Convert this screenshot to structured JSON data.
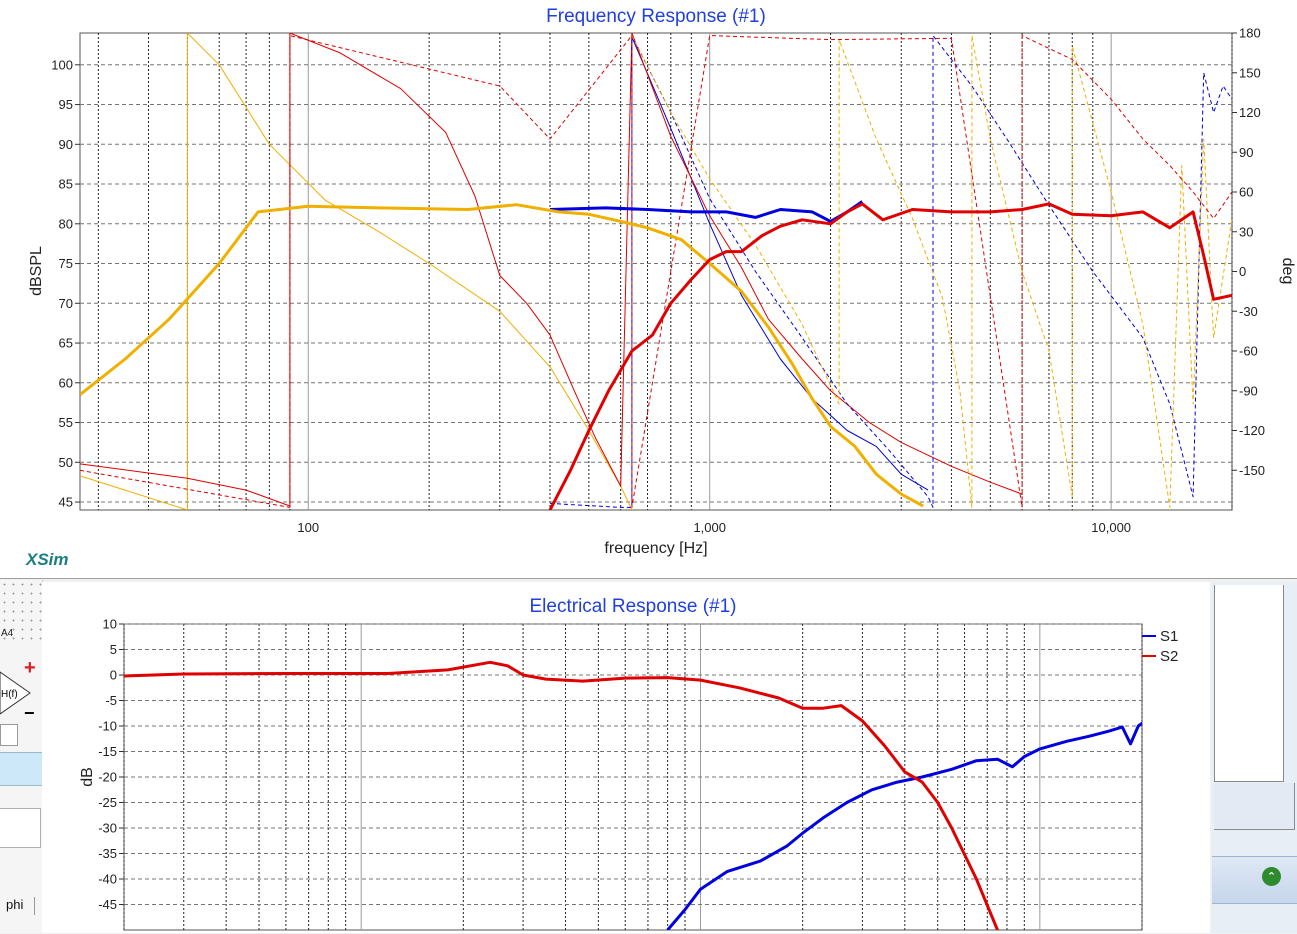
{
  "brand": "XSim",
  "left_strip": {
    "label_a4": "A4",
    "hf_label": "H(f)",
    "plus": "+",
    "minus": "−",
    "phi_label": "phi"
  },
  "collapse_icon": "double-chevron-up-icon",
  "chart_data": [
    {
      "type": "line",
      "title": "Frequency Response (#1)",
      "xlabel": "frequency [Hz]",
      "ylabel": "dBSPL",
      "ylabel_right": "deg",
      "xscale": "log",
      "xlim": [
        27,
        20000
      ],
      "ylim": [
        44,
        104
      ],
      "ylim_right": [
        -180,
        180
      ],
      "grid": true,
      "xticks": [
        100,
        1000,
        10000
      ],
      "xticklabels": [
        "100",
        "1,000",
        "10,000"
      ],
      "yticks": [
        45,
        50,
        55,
        60,
        65,
        70,
        75,
        80,
        85,
        90,
        95,
        100
      ],
      "yticks_right": [
        -150,
        -120,
        -90,
        -60,
        -30,
        0,
        30,
        60,
        90,
        120,
        150,
        180
      ],
      "series": [
        {
          "color": "#0000e0",
          "axis": "left",
          "style": "thick",
          "points": [
            [
              400,
              81.8
            ],
            [
              550,
              82.0
            ],
            [
              700,
              81.8
            ],
            [
              900,
              81.5
            ],
            [
              1100,
              81.5
            ],
            [
              1300,
              80.8
            ],
            [
              1500,
              81.8
            ],
            [
              1800,
              81.5
            ],
            [
              2000,
              80.3
            ],
            [
              2200,
              81.5
            ],
            [
              2400,
              82.8
            ]
          ]
        },
        {
          "color": "#f0b000",
          "axis": "left",
          "style": "thick",
          "points": [
            [
              27,
              58.5
            ],
            [
              35,
              63
            ],
            [
              45,
              68
            ],
            [
              60,
              75
            ],
            [
              75,
              81.5
            ],
            [
              100,
              82.2
            ],
            [
              150,
              82.0
            ],
            [
              250,
              81.8
            ],
            [
              330,
              82.4
            ],
            [
              420,
              81.5
            ],
            [
              500,
              81.2
            ],
            [
              600,
              80.3
            ],
            [
              700,
              79.5
            ],
            [
              850,
              78.0
            ],
            [
              1000,
              75.0
            ],
            [
              1200,
              71.5
            ],
            [
              1400,
              67.0
            ],
            [
              1600,
              62.5
            ],
            [
              1800,
              58.0
            ],
            [
              2000,
              54.5
            ],
            [
              2300,
              52.0
            ],
            [
              2600,
              48.5
            ],
            [
              3000,
              46.0
            ],
            [
              3400,
              44.5
            ]
          ]
        },
        {
          "color": "#e00000",
          "axis": "left",
          "style": "thick",
          "points": [
            [
              400,
              44
            ],
            [
              450,
              49
            ],
            [
              500,
              54
            ],
            [
              560,
              59
            ],
            [
              640,
              64
            ],
            [
              720,
              66
            ],
            [
              800,
              70
            ],
            [
              900,
              73
            ],
            [
              1000,
              75.5
            ],
            [
              1100,
              76.5
            ],
            [
              1200,
              76.5
            ],
            [
              1350,
              78.5
            ],
            [
              1500,
              79.7
            ],
            [
              1700,
              80.5
            ],
            [
              2000,
              80.0
            ],
            [
              2200,
              81.5
            ],
            [
              2400,
              82.5
            ],
            [
              2700,
              80.5
            ],
            [
              3200,
              81.8
            ],
            [
              4000,
              81.5
            ],
            [
              5000,
              81.5
            ],
            [
              6000,
              81.8
            ],
            [
              7000,
              82.5
            ],
            [
              8000,
              81.2
            ],
            [
              10000,
              81.0
            ],
            [
              12000,
              81.5
            ],
            [
              14000,
              79.5
            ],
            [
              16000,
              81.5
            ],
            [
              17000,
              76.0
            ],
            [
              18000,
              70.5
            ],
            [
              20000,
              71.0
            ]
          ]
        },
        {
          "color": "#0000e0",
          "axis": "left",
          "style": "thin",
          "points": [
            [
              640,
              103.5
            ],
            [
              800,
              92
            ],
            [
              1000,
              80
            ],
            [
              1200,
              71
            ],
            [
              1500,
              63
            ],
            [
              1800,
              58
            ],
            [
              2200,
              54
            ],
            [
              2600,
              52
            ],
            [
              3000,
              48.5
            ],
            [
              3500,
              46.5
            ]
          ]
        },
        {
          "color": "#f0b000",
          "axis": "left",
          "style": "thin",
          "points": [
            [
              27,
              48.3
            ],
            [
              50,
              44
            ],
            [
              50,
              104
            ],
            [
              60,
              100
            ],
            [
              80,
              90
            ],
            [
              110,
              83
            ],
            [
              150,
              79
            ],
            [
              200,
              75
            ],
            [
              300,
              69
            ],
            [
              400,
              62
            ],
            [
              500,
              54
            ],
            [
              600,
              47
            ],
            [
              640,
              44
            ]
          ]
        },
        {
          "color": "#e00000",
          "axis": "left",
          "style": "thin",
          "points": [
            [
              27,
              49.8
            ],
            [
              50,
              48.0
            ],
            [
              70,
              46.5
            ],
            [
              90,
              44.5
            ],
            [
              90,
              104
            ],
            [
              120,
              101.5
            ],
            [
              170,
              97
            ],
            [
              220,
              91.5
            ],
            [
              260,
              83.5
            ],
            [
              300,
              73.5
            ],
            [
              350,
              70
            ],
            [
              400,
              66
            ],
            [
              460,
              59
            ],
            [
              520,
              53
            ],
            [
              600,
              47
            ],
            [
              640,
              104
            ],
            [
              800,
              91
            ],
            [
              1000,
              81
            ],
            [
              1200,
              74.5
            ],
            [
              1400,
              68
            ],
            [
              1700,
              63
            ],
            [
              2000,
              59
            ],
            [
              2500,
              55
            ],
            [
              3000,
              52.5
            ],
            [
              4000,
              49.5
            ],
            [
              5000,
              47.5
            ],
            [
              6000,
              46
            ]
          ]
        },
        {
          "color": "#0000e0",
          "axis": "right",
          "style": "dash",
          "points": [
            [
              400,
              -175
            ],
            [
              600,
              -178
            ],
            [
              640,
              -178
            ],
            [
              640,
              178
            ],
            [
              800,
              120
            ],
            [
              1000,
              55
            ],
            [
              1300,
              0
            ],
            [
              1700,
              -50
            ],
            [
              2200,
              -100
            ],
            [
              2800,
              -135
            ],
            [
              3500,
              -170
            ],
            [
              3600,
              -178
            ],
            [
              3600,
              178
            ],
            [
              4500,
              140
            ],
            [
              5500,
              100
            ],
            [
              7000,
              50
            ],
            [
              9000,
              0
            ],
            [
              12000,
              -50
            ],
            [
              14000,
              -100
            ],
            [
              16000,
              -170
            ],
            [
              17000,
              150
            ],
            [
              18000,
              120
            ],
            [
              19000,
              140
            ],
            [
              20000,
              130
            ]
          ]
        },
        {
          "color": "#f0b000",
          "axis": "right",
          "style": "dash",
          "points": [
            [
              640,
              178
            ],
            [
              800,
              120
            ],
            [
              1000,
              70
            ],
            [
              1300,
              20
            ],
            [
              1700,
              -40
            ],
            [
              2100,
              -100
            ],
            [
              2100,
              175
            ],
            [
              2600,
              100
            ],
            [
              3200,
              40
            ],
            [
              3800,
              -20
            ],
            [
              4200,
              -90
            ],
            [
              4500,
              -178
            ],
            [
              4500,
              178
            ],
            [
              5000,
              100
            ],
            [
              6000,
              0
            ],
            [
              7000,
              -60
            ],
            [
              8000,
              -170
            ],
            [
              8000,
              170
            ],
            [
              10000,
              60
            ],
            [
              12000,
              -40
            ],
            [
              14000,
              -178
            ],
            [
              15000,
              80
            ],
            [
              16000,
              -100
            ],
            [
              17000,
              100
            ],
            [
              18000,
              -50
            ],
            [
              20000,
              40
            ]
          ]
        },
        {
          "color": "#e00000",
          "axis": "right",
          "style": "dash",
          "points": [
            [
              27,
              -150
            ],
            [
              90,
              -178
            ],
            [
              90,
              178
            ],
            [
              300,
              140
            ],
            [
              400,
              100
            ],
            [
              640,
              178
            ],
            [
              640,
              -178
            ],
            [
              1000,
              178
            ],
            [
              2000,
              175
            ],
            [
              4000,
              176
            ],
            [
              6000,
              -178
            ],
            [
              6000,
              178
            ],
            [
              8000,
              160
            ],
            [
              10000,
              130
            ],
            [
              12000,
              100
            ],
            [
              14000,
              80
            ],
            [
              16000,
              60
            ],
            [
              18000,
              40
            ],
            [
              20000,
              60
            ]
          ]
        }
      ]
    },
    {
      "type": "line",
      "title": "Electrical Response (#1)",
      "xlabel": "",
      "ylabel": "dB",
      "xscale": "log",
      "xlim": [
        20,
        20000
      ],
      "ylim": [
        -50,
        10
      ],
      "grid": true,
      "yticks": [
        10,
        5,
        0,
        -5,
        -10,
        -15,
        -20,
        -25,
        -30,
        -35,
        -40,
        -45
      ],
      "series": [
        {
          "name": "S1",
          "color": "#0000e0",
          "points": [
            [
              800,
              -50
            ],
            [
              900,
              -46
            ],
            [
              1000,
              -42
            ],
            [
              1200,
              -38.5
            ],
            [
              1500,
              -36.5
            ],
            [
              1800,
              -33.5
            ],
            [
              2000,
              -31
            ],
            [
              2300,
              -28
            ],
            [
              2700,
              -25
            ],
            [
              3200,
              -22.5
            ],
            [
              3800,
              -21
            ],
            [
              4500,
              -20
            ],
            [
              5500,
              -18.5
            ],
            [
              6500,
              -16.8
            ],
            [
              7500,
              -16.5
            ],
            [
              8300,
              -18
            ],
            [
              9000,
              -16
            ],
            [
              10000,
              -14.5
            ],
            [
              12000,
              -13
            ],
            [
              14000,
              -12
            ],
            [
              16000,
              -11
            ],
            [
              17500,
              -10.2
            ],
            [
              18500,
              -13.5
            ],
            [
              19500,
              -10
            ],
            [
              20000,
              -9.5
            ],
            [
              24000,
              -8.5
            ]
          ]
        },
        {
          "name": "S2",
          "color": "#e00000",
          "points": [
            [
              20,
              -0.2
            ],
            [
              30,
              0.2
            ],
            [
              60,
              0.3
            ],
            [
              120,
              0.3
            ],
            [
              180,
              1.0
            ],
            [
              240,
              2.5
            ],
            [
              270,
              1.8
            ],
            [
              300,
              0.0
            ],
            [
              350,
              -0.8
            ],
            [
              450,
              -1.2
            ],
            [
              600,
              -0.6
            ],
            [
              800,
              -0.5
            ],
            [
              1000,
              -1.0
            ],
            [
              1300,
              -2.5
            ],
            [
              1700,
              -4.5
            ],
            [
              2000,
              -6.5
            ],
            [
              2300,
              -6.5
            ],
            [
              2600,
              -6.0
            ],
            [
              3000,
              -9.0
            ],
            [
              3500,
              -14
            ],
            [
              4000,
              -19
            ],
            [
              4500,
              -21
            ],
            [
              5000,
              -25
            ],
            [
              5500,
              -30
            ],
            [
              6500,
              -40
            ],
            [
              7500,
              -50
            ]
          ]
        }
      ]
    }
  ]
}
